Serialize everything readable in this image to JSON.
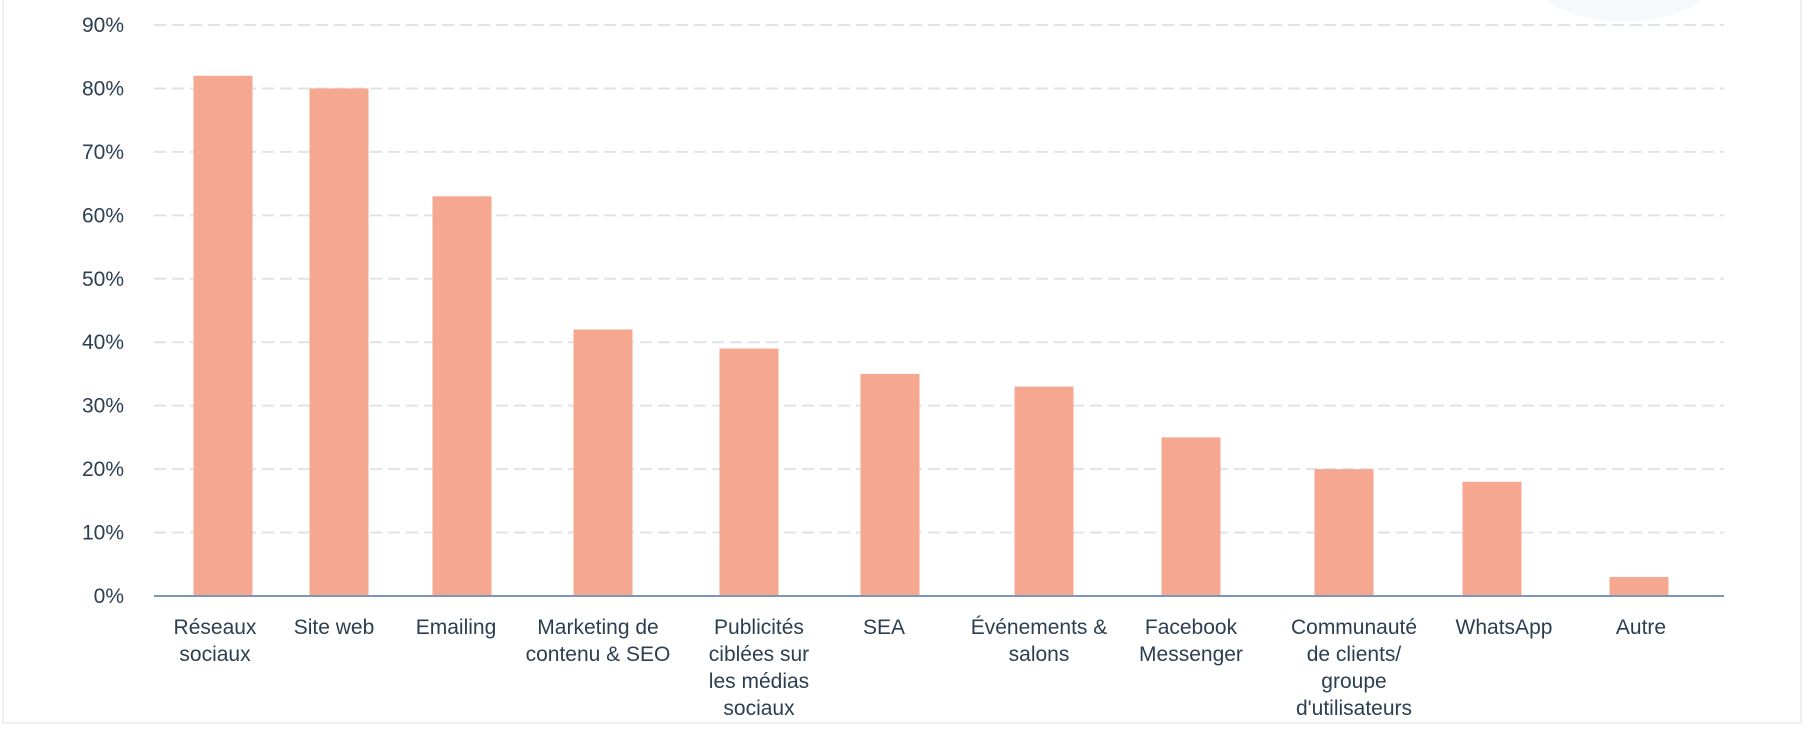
{
  "chart_data": {
    "type": "bar",
    "categories": [
      [
        "Réseaux",
        "sociaux"
      ],
      [
        "Site web"
      ],
      [
        "Emailing"
      ],
      [
        "Marketing de",
        "contenu & SEO"
      ],
      [
        "Publicités",
        "ciblées sur",
        "les médias",
        "sociaux"
      ],
      [
        "SEA"
      ],
      [
        "Événements &",
        "salons"
      ],
      [
        "Facebook",
        "Messenger"
      ],
      [
        "Communauté",
        "de clients/",
        "groupe",
        "d'utilisateurs"
      ],
      [
        "WhatsApp"
      ],
      [
        "Autre"
      ]
    ],
    "values": [
      82,
      80,
      63,
      42,
      39,
      35,
      33,
      25,
      20,
      18,
      3
    ],
    "ylim": [
      0,
      90
    ],
    "yticks": [
      0,
      10,
      20,
      30,
      40,
      50,
      60,
      70,
      80,
      90
    ],
    "ytick_labels": [
      "0%",
      "10%",
      "20%",
      "30%",
      "40%",
      "50%",
      "60%",
      "70%",
      "80%",
      "90%"
    ],
    "title": "",
    "xlabel": "",
    "ylabel": "",
    "grid": true,
    "legend": "none",
    "colors": {
      "bar": "#f5a78f",
      "grid": "#dfe3eb",
      "axis": "#7c98b6",
      "text": "#2d3e50",
      "decoration": "#f6f8fb"
    }
  }
}
